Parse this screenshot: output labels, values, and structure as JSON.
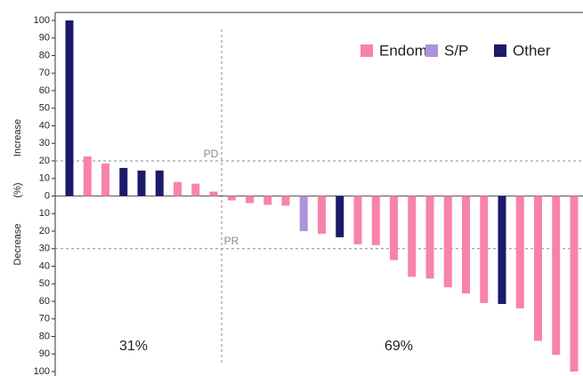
{
  "chart_data": {
    "type": "waterfall",
    "ylabel": {
      "increase": "Increase",
      "unit": "(%)",
      "decrease": "Decrease"
    },
    "categories": [
      null,
      null,
      null,
      null,
      null,
      null,
      null,
      null,
      null,
      null,
      null,
      null,
      null,
      null,
      null,
      null,
      null,
      null,
      null,
      null,
      null,
      null,
      null,
      null,
      null,
      null,
      null,
      null,
      null
    ],
    "series": [
      {
        "name": "Endom",
        "color": "#f783a9",
        "values": [
          null,
          22.5,
          18.5,
          null,
          null,
          null,
          8,
          7,
          2.5,
          -2.5,
          -4,
          -5,
          -5.5,
          null,
          -21.5,
          null,
          -27.5,
          -28,
          -36.5,
          -46,
          -47,
          -52,
          -55.5,
          -61,
          null,
          -64,
          -82.5,
          -90.5,
          -100
        ]
      },
      {
        "name": "S/P",
        "color": "#ad93d8",
        "values": [
          null,
          null,
          null,
          null,
          null,
          null,
          null,
          null,
          null,
          null,
          null,
          null,
          null,
          -20,
          null,
          null,
          null,
          null,
          null,
          null,
          null,
          null,
          null,
          null,
          null,
          null,
          null,
          null,
          null
        ]
      },
      {
        "name": "Other",
        "color": "#1b1a6b",
        "values": [
          100,
          null,
          null,
          16,
          14.5,
          14.5,
          null,
          null,
          null,
          null,
          null,
          null,
          null,
          null,
          null,
          -23.5,
          null,
          null,
          null,
          null,
          null,
          null,
          null,
          null,
          -61.5,
          null,
          null,
          null,
          null
        ]
      }
    ],
    "ylim": [
      -100,
      100
    ],
    "yticks": [
      100,
      90,
      80,
      70,
      60,
      50,
      40,
      30,
      20,
      10,
      0,
      {
        "value": -10,
        "label": "10"
      },
      {
        "value": -20,
        "label": "20"
      },
      {
        "value": -30,
        "label": "30"
      },
      {
        "value": -40,
        "label": "40"
      },
      {
        "value": -50,
        "label": "50"
      },
      {
        "value": -60,
        "label": "60"
      },
      {
        "value": -70,
        "label": "70"
      },
      {
        "value": -80,
        "label": "80"
      },
      {
        "value": -90,
        "label": "90"
      },
      {
        "value": -100,
        "label": "100"
      }
    ],
    "reference_lines": [
      {
        "value": 20,
        "label": "PD"
      },
      {
        "value": -30,
        "label": "PR"
      }
    ],
    "annotations": [
      "31%",
      "69%"
    ],
    "legend": "upper right"
  }
}
